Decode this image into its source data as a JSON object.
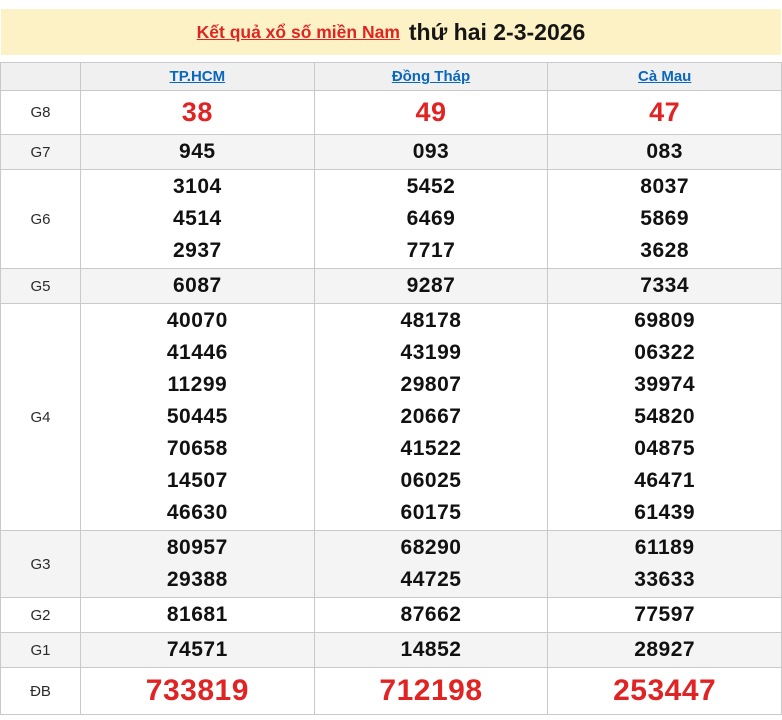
{
  "banner": {
    "title_link": "Kết quả xổ số miền Nam",
    "title_rest": "thứ hai 2-3-2026"
  },
  "table": {
    "regions": [
      "TP.HCM",
      "Đồng Tháp",
      "Cà Mau"
    ],
    "region_keys": [
      "tphcm",
      "dong-thap",
      "ca-mau"
    ],
    "prizes": [
      {
        "key": "g8",
        "label": "G8",
        "style": "red-medium",
        "values": [
          [
            "38"
          ],
          [
            "49"
          ],
          [
            "47"
          ]
        ]
      },
      {
        "key": "g7",
        "label": "G7",
        "values": [
          [
            "945"
          ],
          [
            "093"
          ],
          [
            "083"
          ]
        ]
      },
      {
        "key": "g6",
        "label": "G6",
        "values": [
          [
            "3104",
            "4514",
            "2937"
          ],
          [
            "5452",
            "6469",
            "7717"
          ],
          [
            "8037",
            "5869",
            "3628"
          ]
        ]
      },
      {
        "key": "g5",
        "label": "G5",
        "values": [
          [
            "6087"
          ],
          [
            "9287"
          ],
          [
            "7334"
          ]
        ]
      },
      {
        "key": "g4",
        "label": "G4",
        "values": [
          [
            "40070",
            "41446",
            "11299",
            "50445",
            "70658",
            "14507",
            "46630"
          ],
          [
            "48178",
            "43199",
            "29807",
            "20667",
            "41522",
            "06025",
            "60175"
          ],
          [
            "69809",
            "06322",
            "39974",
            "54820",
            "04875",
            "46471",
            "61439"
          ]
        ]
      },
      {
        "key": "g3",
        "label": "G3",
        "values": [
          [
            "80957",
            "29388"
          ],
          [
            "68290",
            "44725"
          ],
          [
            "61189",
            "33633"
          ]
        ]
      },
      {
        "key": "g2",
        "label": "G2",
        "values": [
          [
            "81681"
          ],
          [
            "87662"
          ],
          [
            "77597"
          ]
        ]
      },
      {
        "key": "g1",
        "label": "G1",
        "values": [
          [
            "74571"
          ],
          [
            "14852"
          ],
          [
            "28927"
          ]
        ]
      },
      {
        "key": "db",
        "label": "ĐB",
        "style": "red-large",
        "values": [
          [
            "733819"
          ],
          [
            "712198"
          ],
          [
            "253447"
          ]
        ]
      }
    ]
  },
  "colors": {
    "banner_bg": "#fcf2c5",
    "number_red": "#e02424",
    "link_blue": "#0a67be",
    "row_shade": "#f4f4f4",
    "header_bg": "#f0f0f0",
    "border": "#c9c9c9"
  }
}
